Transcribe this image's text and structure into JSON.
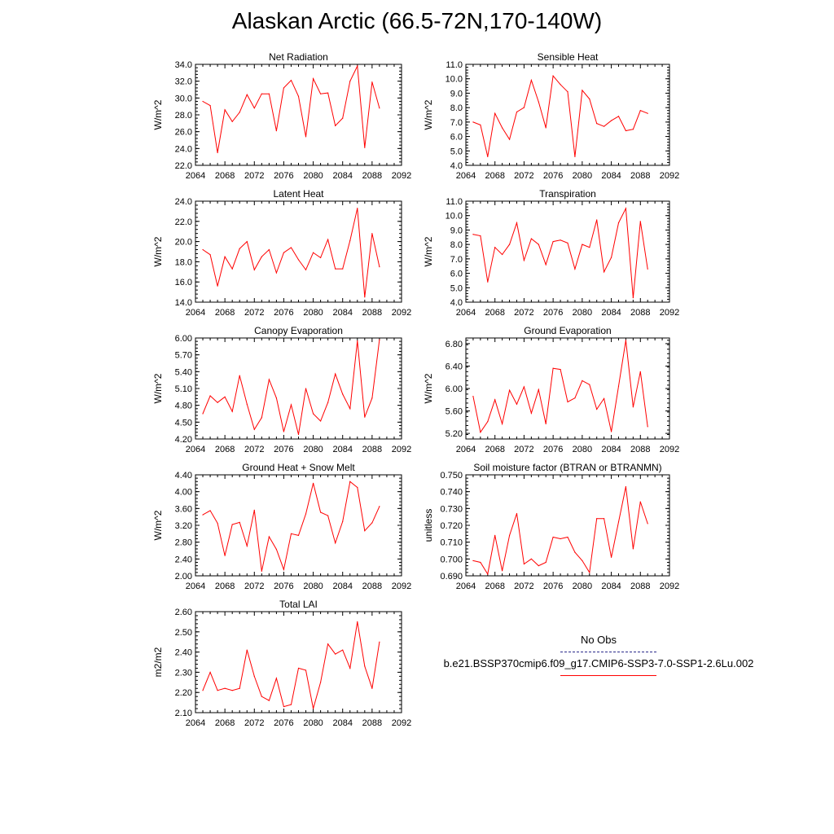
{
  "title": "Alaskan Arctic (66.5-72N,170-140W)",
  "legend": {
    "obs_label": "No Obs",
    "obs_color": "#2a2a8a",
    "model_label": "b.e21.BSSP370cmip6.f09_g17.CMIP6-SSP3-7.0-SSP1-2.6Lu.002",
    "model_color": "#ff0000"
  },
  "chart_data": [
    {
      "type": "line",
      "title": "Net Radiation",
      "ylabel": "W/m^2",
      "xlim": [
        2064,
        2092
      ],
      "xticks": [
        "2064",
        "2068",
        "2072",
        "2076",
        "2080",
        "2084",
        "2088",
        "2092"
      ],
      "ylim": [
        22.0,
        34.0
      ],
      "yticks": [
        "22.0",
        "24.0",
        "26.0",
        "28.0",
        "30.0",
        "32.0",
        "34.0"
      ],
      "x": [
        2065,
        2066,
        2067,
        2068,
        2069,
        2070,
        2071,
        2072,
        2073,
        2074,
        2075,
        2076,
        2077,
        2078,
        2079,
        2080,
        2081,
        2082,
        2083,
        2084,
        2085,
        2086,
        2087,
        2088,
        2089
      ],
      "series": [
        {
          "values": [
            29.6,
            29.1,
            23.5,
            28.6,
            27.2,
            28.3,
            30.4,
            28.8,
            30.5,
            30.5,
            26.1,
            31.2,
            32.1,
            30.2,
            25.4,
            32.3,
            30.5,
            30.6,
            26.7,
            27.6,
            32.0,
            33.8,
            24.1,
            31.9,
            28.8
          ]
        }
      ]
    },
    {
      "type": "line",
      "title": "Sensible Heat",
      "ylabel": "W/m^2",
      "xlim": [
        2064,
        2092
      ],
      "xticks": [
        "2064",
        "2068",
        "2072",
        "2076",
        "2080",
        "2084",
        "2088",
        "2092"
      ],
      "ylim": [
        4.0,
        11.0
      ],
      "yticks": [
        "4.0",
        "5.0",
        "6.0",
        "7.0",
        "8.0",
        "9.0",
        "10.0",
        "11.0"
      ],
      "x": [
        2065,
        2066,
        2067,
        2068,
        2069,
        2070,
        2071,
        2072,
        2073,
        2074,
        2075,
        2076,
        2077,
        2078,
        2079,
        2080,
        2081,
        2082,
        2083,
        2084,
        2085,
        2086,
        2087,
        2088,
        2089
      ],
      "series": [
        {
          "values": [
            7.0,
            6.8,
            4.6,
            7.6,
            6.6,
            5.8,
            7.7,
            8.0,
            9.9,
            8.4,
            6.6,
            10.2,
            9.6,
            9.1,
            4.6,
            9.2,
            8.6,
            6.9,
            6.7,
            7.1,
            7.4,
            6.4,
            6.5,
            7.8,
            7.6
          ]
        }
      ]
    },
    {
      "type": "line",
      "title": "Latent Heat",
      "ylabel": "W/m^2",
      "xlim": [
        2064,
        2092
      ],
      "xticks": [
        "2064",
        "2068",
        "2072",
        "2076",
        "2080",
        "2084",
        "2088",
        "2092"
      ],
      "ylim": [
        14.0,
        24.0
      ],
      "yticks": [
        "14.0",
        "16.0",
        "18.0",
        "20.0",
        "22.0",
        "24.0"
      ],
      "x": [
        2065,
        2066,
        2067,
        2068,
        2069,
        2070,
        2071,
        2072,
        2073,
        2074,
        2075,
        2076,
        2077,
        2078,
        2079,
        2080,
        2081,
        2082,
        2083,
        2084,
        2085,
        2086,
        2087,
        2088,
        2089
      ],
      "series": [
        {
          "values": [
            19.2,
            18.7,
            15.6,
            18.5,
            17.3,
            19.3,
            20.0,
            17.2,
            18.5,
            19.2,
            16.9,
            18.9,
            19.4,
            18.2,
            17.2,
            18.9,
            18.4,
            20.2,
            17.3,
            17.3,
            20.1,
            23.3,
            14.5,
            20.8,
            17.5
          ]
        }
      ]
    },
    {
      "type": "line",
      "title": "Transpiration",
      "ylabel": "W/m^2",
      "xlim": [
        2064,
        2092
      ],
      "xticks": [
        "2064",
        "2068",
        "2072",
        "2076",
        "2080",
        "2084",
        "2088",
        "2092"
      ],
      "ylim": [
        4.0,
        11.0
      ],
      "yticks": [
        "4.0",
        "5.0",
        "6.0",
        "7.0",
        "8.0",
        "9.0",
        "10.0",
        "11.0"
      ],
      "x": [
        2065,
        2066,
        2067,
        2068,
        2069,
        2070,
        2071,
        2072,
        2073,
        2074,
        2075,
        2076,
        2077,
        2078,
        2079,
        2080,
        2081,
        2082,
        2083,
        2084,
        2085,
        2086,
        2087,
        2088,
        2089
      ],
      "series": [
        {
          "values": [
            8.7,
            8.6,
            5.4,
            7.8,
            7.3,
            8.0,
            9.5,
            6.9,
            8.4,
            8.0,
            6.6,
            8.2,
            8.3,
            8.1,
            6.3,
            8.0,
            7.8,
            9.7,
            6.1,
            7.1,
            9.5,
            10.5,
            4.3,
            9.6,
            6.3
          ]
        }
      ]
    },
    {
      "type": "line",
      "title": "Canopy Evaporation",
      "ylabel": "W/m^2",
      "xlim": [
        2064,
        2092
      ],
      "xticks": [
        "2064",
        "2068",
        "2072",
        "2076",
        "2080",
        "2084",
        "2088",
        "2092"
      ],
      "ylim": [
        4.2,
        6.0
      ],
      "yticks": [
        "4.20",
        "4.50",
        "4.80",
        "5.10",
        "5.40",
        "5.70",
        "6.00"
      ],
      "x": [
        2065,
        2066,
        2067,
        2068,
        2069,
        2070,
        2071,
        2072,
        2073,
        2074,
        2075,
        2076,
        2077,
        2078,
        2079,
        2080,
        2081,
        2082,
        2083,
        2084,
        2085,
        2086,
        2087,
        2088,
        2089
      ],
      "series": [
        {
          "values": [
            4.65,
            4.97,
            4.85,
            4.95,
            4.69,
            5.33,
            4.82,
            4.37,
            4.58,
            5.26,
            4.93,
            4.33,
            4.81,
            4.28,
            5.1,
            4.65,
            4.52,
            4.85,
            5.36,
            5.0,
            4.74,
            5.95,
            4.59,
            4.93,
            5.97
          ]
        }
      ]
    },
    {
      "type": "line",
      "title": "Ground Evaporation",
      "ylabel": "W/m^2",
      "xlim": [
        2064,
        2092
      ],
      "xticks": [
        "2064",
        "2068",
        "2072",
        "2076",
        "2080",
        "2084",
        "2088",
        "2092"
      ],
      "ylim": [
        5.1,
        6.9
      ],
      "yticks": [
        "5.20",
        "5.60",
        "6.00",
        "6.40",
        "6.80"
      ],
      "x": [
        2065,
        2066,
        2067,
        2068,
        2069,
        2070,
        2071,
        2072,
        2073,
        2074,
        2075,
        2076,
        2077,
        2078,
        2079,
        2080,
        2081,
        2082,
        2083,
        2084,
        2085,
        2086,
        2087,
        2088,
        2089
      ],
      "series": [
        {
          "values": [
            5.86,
            5.22,
            5.41,
            5.8,
            5.37,
            5.97,
            5.72,
            6.03,
            5.56,
            5.98,
            5.37,
            6.36,
            6.34,
            5.76,
            5.83,
            6.14,
            6.07,
            5.63,
            5.82,
            5.23,
            6.04,
            6.86,
            5.67,
            6.3,
            5.32
          ]
        }
      ]
    },
    {
      "type": "line",
      "title": "Ground Heat + Snow Melt",
      "ylabel": "W/m^2",
      "xlim": [
        2064,
        2092
      ],
      "xticks": [
        "2064",
        "2068",
        "2072",
        "2076",
        "2080",
        "2084",
        "2088",
        "2092"
      ],
      "ylim": [
        2.0,
        4.4
      ],
      "yticks": [
        "2.00",
        "2.40",
        "2.80",
        "3.20",
        "3.60",
        "4.00",
        "4.40"
      ],
      "x": [
        2065,
        2066,
        2067,
        2068,
        2069,
        2070,
        2071,
        2072,
        2073,
        2074,
        2075,
        2076,
        2077,
        2078,
        2079,
        2080,
        2081,
        2082,
        2083,
        2084,
        2085,
        2086,
        2087,
        2088,
        2089
      ],
      "series": [
        {
          "values": [
            3.45,
            3.55,
            3.25,
            2.48,
            3.22,
            3.27,
            2.71,
            3.56,
            2.11,
            2.93,
            2.63,
            2.15,
            3.0,
            2.96,
            3.47,
            4.2,
            3.51,
            3.43,
            2.78,
            3.29,
            4.24,
            4.1,
            3.07,
            3.26,
            3.65
          ]
        }
      ]
    },
    {
      "type": "line",
      "title": "Soil moisture factor (BTRAN or BTRANMN)",
      "ylabel": "unitless",
      "xlim": [
        2064,
        2092
      ],
      "xticks": [
        "2064",
        "2068",
        "2072",
        "2076",
        "2080",
        "2084",
        "2088",
        "2092"
      ],
      "ylim": [
        0.69,
        0.75
      ],
      "yticks": [
        "0.690",
        "0.700",
        "0.710",
        "0.720",
        "0.730",
        "0.740",
        "0.750"
      ],
      "x": [
        2065,
        2066,
        2067,
        2068,
        2069,
        2070,
        2071,
        2072,
        2073,
        2074,
        2075,
        2076,
        2077,
        2078,
        2079,
        2080,
        2081,
        2082,
        2083,
        2084,
        2085,
        2086,
        2087,
        2088,
        2089
      ],
      "series": [
        {
          "values": [
            0.699,
            0.698,
            0.691,
            0.714,
            0.693,
            0.714,
            0.727,
            0.697,
            0.7,
            0.696,
            0.698,
            0.713,
            0.712,
            0.713,
            0.704,
            0.699,
            0.692,
            0.724,
            0.724,
            0.701,
            0.722,
            0.743,
            0.706,
            0.734,
            0.721
          ]
        }
      ]
    },
    {
      "type": "line",
      "title": "Total LAI",
      "ylabel": "m2/m2",
      "xlim": [
        2064,
        2092
      ],
      "xticks": [
        "2064",
        "2068",
        "2072",
        "2076",
        "2080",
        "2084",
        "2088",
        "2092"
      ],
      "ylim": [
        2.1,
        2.6
      ],
      "yticks": [
        "2.10",
        "2.20",
        "2.30",
        "2.40",
        "2.50",
        "2.60"
      ],
      "x": [
        2065,
        2066,
        2067,
        2068,
        2069,
        2070,
        2071,
        2072,
        2073,
        2074,
        2075,
        2076,
        2077,
        2078,
        2079,
        2080,
        2081,
        2082,
        2083,
        2084,
        2085,
        2086,
        2087,
        2088,
        2089
      ],
      "series": [
        {
          "values": [
            2.21,
            2.3,
            2.21,
            2.22,
            2.21,
            2.22,
            2.41,
            2.28,
            2.18,
            2.16,
            2.27,
            2.13,
            2.14,
            2.32,
            2.31,
            2.12,
            2.25,
            2.44,
            2.39,
            2.41,
            2.32,
            2.55,
            2.33,
            2.22,
            2.45
          ]
        }
      ]
    }
  ]
}
